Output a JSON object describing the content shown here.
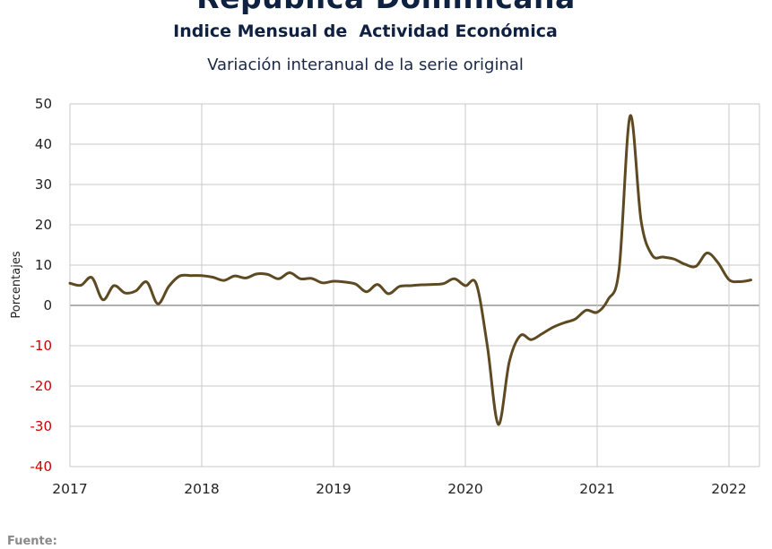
{
  "header": {
    "title": "República Dominicana",
    "subtitle": "Indice Mensual de  Actividad Económica",
    "chart_title": "Variación interanual de la serie original"
  },
  "footer": {
    "source_label": "Fuente:"
  },
  "colors": {
    "line": "#5e4a22",
    "negative_tick": "#cc0000",
    "grid": "#c8c8c8",
    "zero_line": "#7f7f7f"
  },
  "chart_data": {
    "type": "line",
    "title": "Variación interanual de la serie original",
    "xlabel": "",
    "ylabel": "Porcentajes",
    "xlim": [
      2017,
      2022.25
    ],
    "ylim": [
      -40,
      50
    ],
    "x_ticks": [
      "2017",
      "2018",
      "2019",
      "2020",
      "2021",
      "2022"
    ],
    "y_ticks": [
      50,
      40,
      30,
      20,
      10,
      0,
      -10,
      -20,
      -30,
      -40
    ],
    "grid": true,
    "legend": "none",
    "series": [
      {
        "name": "",
        "x": [
          "2017-01",
          "2017-02",
          "2017-03",
          "2017-04",
          "2017-05",
          "2017-06",
          "2017-07",
          "2017-08",
          "2017-09",
          "2017-10",
          "2017-11",
          "2017-12",
          "2018-01",
          "2018-02",
          "2018-03",
          "2018-04",
          "2018-05",
          "2018-06",
          "2018-07",
          "2018-08",
          "2018-09",
          "2018-10",
          "2018-11",
          "2018-12",
          "2019-01",
          "2019-02",
          "2019-03",
          "2019-04",
          "2019-05",
          "2019-06",
          "2019-07",
          "2019-08",
          "2019-09",
          "2019-10",
          "2019-11",
          "2019-12",
          "2020-01",
          "2020-02",
          "2020-03",
          "2020-04",
          "2020-05",
          "2020-06",
          "2020-07",
          "2020-08",
          "2020-09",
          "2020-10",
          "2020-11",
          "2020-12",
          "2021-01",
          "2021-02",
          "2021-03",
          "2021-04",
          "2021-05",
          "2021-06",
          "2021-07",
          "2021-08",
          "2021-09",
          "2021-10",
          "2021-11",
          "2021-12",
          "2022-01",
          "2022-02",
          "2022-03"
        ],
        "values": [
          5.5,
          5.0,
          6.9,
          1.4,
          4.9,
          3.1,
          3.6,
          5.8,
          0.4,
          4.7,
          7.3,
          7.4,
          7.4,
          7.0,
          6.2,
          7.3,
          6.8,
          7.8,
          7.7,
          6.6,
          8.1,
          6.6,
          6.7,
          5.6,
          6.0,
          5.8,
          5.3,
          3.4,
          5.2,
          2.9,
          4.7,
          4.9,
          5.1,
          5.2,
          5.4,
          6.6,
          4.9,
          5.3,
          -10.0,
          -29.5,
          -14.0,
          -7.5,
          -8.5,
          -7.0,
          -5.4,
          -4.3,
          -3.4,
          -1.2,
          -1.7,
          1.5,
          9.0,
          47.0,
          21.0,
          12.5,
          12.0,
          11.5,
          10.2,
          9.7,
          13.0,
          10.6,
          6.4,
          5.9,
          6.3
        ]
      }
    ]
  }
}
